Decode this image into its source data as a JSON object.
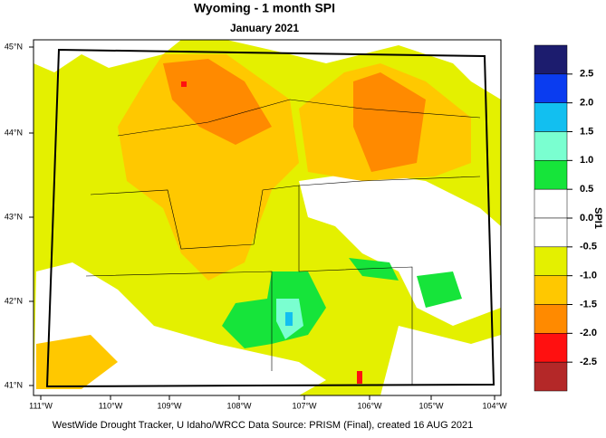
{
  "header": {
    "title": "Wyoming - 1 month SPI",
    "subtitle": "January 2021"
  },
  "map": {
    "lat_labels": [
      "45°N",
      "44°N",
      "43°N",
      "42°N",
      "41°N"
    ],
    "lon_labels": [
      "111°W",
      "110°W",
      "109°W",
      "108°W",
      "107°W",
      "106°W",
      "105°W",
      "104°W"
    ]
  },
  "legend": {
    "label": "SPI1",
    "colors": [
      "#1c1c6e",
      "#0a3cf0",
      "#12bff0",
      "#7affd0",
      "#16e43a",
      "#ffffff",
      "#ffffff",
      "#e4f000",
      "#ffc800",
      "#ff8a00",
      "#ff1010",
      "#b42828"
    ],
    "ticks": [
      2.5,
      {
        "value": 2,
        "label": "2.0"
      },
      1.5,
      {
        "value": 1,
        "label": "1.0"
      },
      0.5,
      {
        "value": 0,
        "label": "0.0"
      },
      -0.5,
      {
        "value": -1,
        "label": "-1.0"
      },
      -1.5,
      {
        "value": -2,
        "label": "-2.0"
      },
      -2.5
    ]
  },
  "footer": "WestWide Drought Tracker, U Idaho/WRCC Data Source: PRISM (Final), created 16 AUG 2021"
}
